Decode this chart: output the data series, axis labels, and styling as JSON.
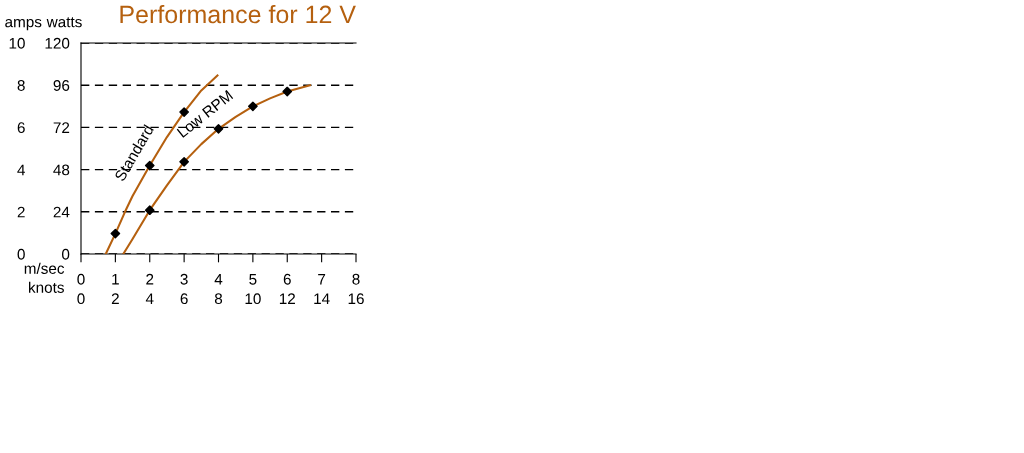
{
  "chart_data": {
    "type": "line",
    "title": "Performance for 12 V",
    "xlabel": "m/sec",
    "x2label": "knots",
    "ylabel": "watts",
    "y2label": "amps",
    "xlim": [
      0,
      8
    ],
    "xticks": [
      0,
      1,
      2,
      3,
      4,
      5,
      6,
      7,
      8
    ],
    "x2lim": [
      0,
      16
    ],
    "x2ticks": [
      0,
      2,
      4,
      6,
      8,
      10,
      12,
      14,
      16
    ],
    "ylim": [
      0,
      120
    ],
    "yticks": [
      0,
      24,
      48,
      72,
      96,
      120
    ],
    "y2lim": [
      0,
      10
    ],
    "y2ticks": [
      0,
      2,
      4,
      6,
      8,
      10
    ],
    "grid": "y",
    "legend": false,
    "series": [
      {
        "name": "Standard",
        "color": "#b5600f",
        "marker": "none",
        "x": [
          0.72,
          1,
          1.28,
          1.5,
          2,
          2.5,
          3,
          3.5,
          3.97
        ],
        "values": [
          0,
          11.6,
          24,
          33,
          50.3,
          66.5,
          80.7,
          93,
          101.5
        ]
      },
      {
        "name": "Low RPM",
        "color": "#b5600f",
        "marker": "none",
        "x": [
          1.23,
          1.5,
          2,
          2.5,
          3,
          3.5,
          4,
          4.5,
          5,
          5.5,
          6,
          6.66
        ],
        "values": [
          0,
          8.5,
          24.9,
          39,
          52.4,
          62.5,
          71.2,
          78,
          84,
          88.5,
          92.4,
          96
        ]
      },
      {
        "color": "#000000",
        "type": "scatter",
        "marker": "diamond",
        "x": [
          1,
          2,
          3
        ],
        "values": [
          11.6,
          50.3,
          80.7
        ]
      },
      {
        "color": "#000000",
        "type": "scatter",
        "marker": "diamond",
        "x": [
          2,
          3,
          4,
          5,
          6
        ],
        "values": [
          24.9,
          52.4,
          71.2,
          84,
          92.4
        ]
      }
    ]
  }
}
